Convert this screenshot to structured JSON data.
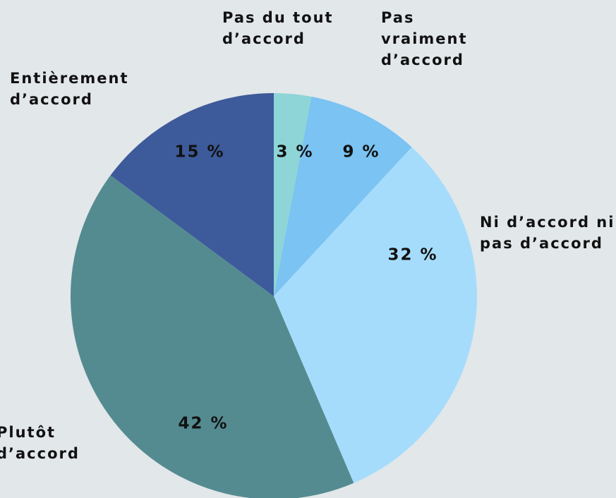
{
  "chart_data": {
    "type": "pie",
    "categories": [
      "Pas du tout d’accord",
      "Pas vraiment d’accord",
      "Ni d’accord ni pas d’accord",
      "Plutôt d’accord",
      "Entièrement d’accord"
    ],
    "values": [
      3,
      9,
      32,
      42,
      15
    ],
    "value_labels": [
      "3 %",
      "9 %",
      "32 %",
      "42 %",
      "15 %"
    ],
    "colors": [
      "#8dd5d6",
      "#7ac3f2",
      "#a6dcfb",
      "#548b91",
      "#3d5a9a"
    ]
  }
}
